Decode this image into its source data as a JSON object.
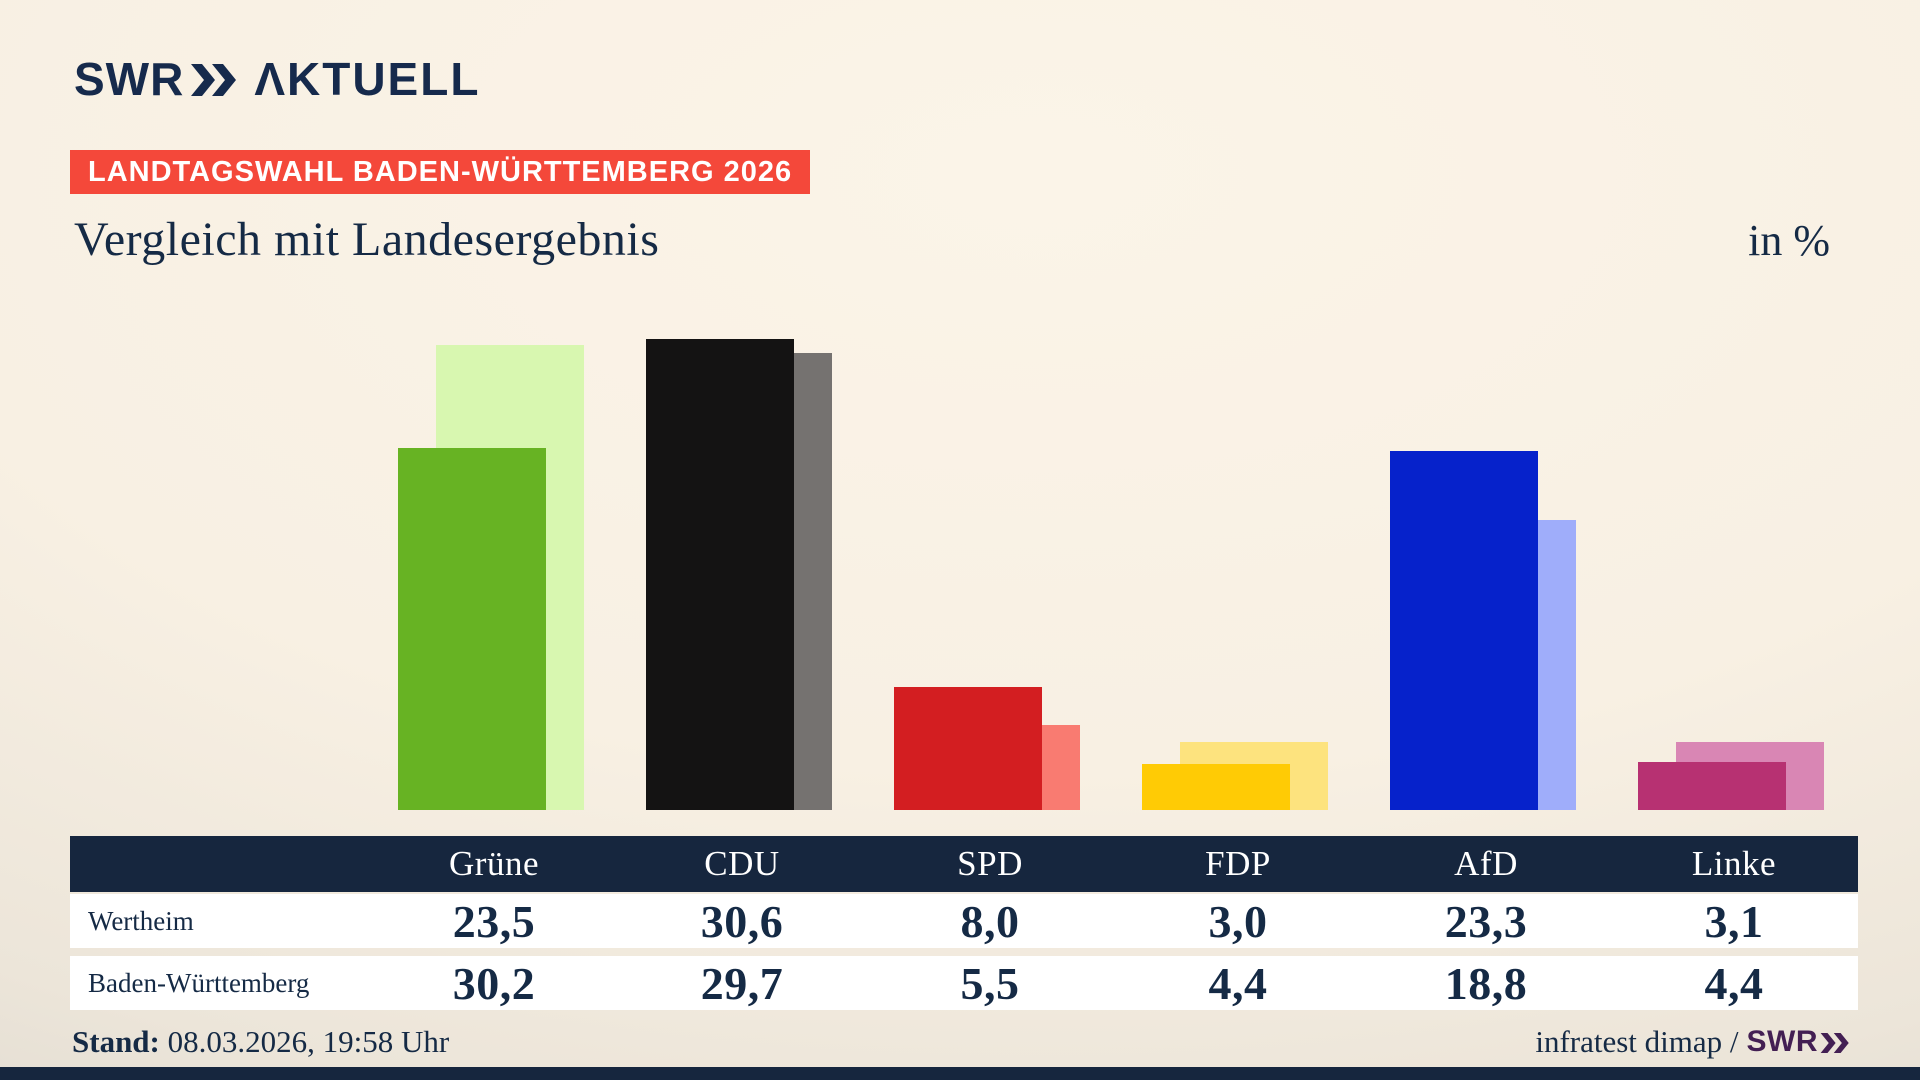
{
  "brand": {
    "swr": "SWR",
    "aktuell": "ΛKTUELL"
  },
  "badge": {
    "label": "LANDTAGSWAHL BADEN-WÜRTTEMBERG 2026",
    "bg": "#f4483a"
  },
  "title": "Vergleich mit Landesergebnis",
  "unit_label": "in %",
  "footer": {
    "stand_label": "Stand:",
    "stand_value": "08.03.2026, 19:58 Uhr",
    "source_text": "infratest dimap /",
    "source_brand": "SWR"
  },
  "colors": {
    "text_navy": "#152a45",
    "logo_navy": "#162a4c",
    "header_navy": "#16263e",
    "badge_red": "#f4483a",
    "footer_brand_purple": "#431f53",
    "bottom_bar_navy": "#16263e",
    "row_bg": "#ffffff"
  },
  "chart_data": {
    "type": "bar",
    "title": "Vergleich mit Landesergebnis",
    "unit": "in %",
    "categories": [
      "Grüne",
      "CDU",
      "SPD",
      "FDP",
      "AfD",
      "Linke"
    ],
    "series": [
      {
        "name": "Wertheim",
        "values": [
          23.5,
          30.6,
          8.0,
          3.0,
          23.3,
          3.1
        ],
        "values_display": [
          "23,5",
          "30,6",
          "8,0",
          "3,0",
          "23,3",
          "3,1"
        ]
      },
      {
        "name": "Baden-Württemberg",
        "values": [
          30.2,
          29.7,
          5.5,
          4.4,
          18.8,
          4.4
        ],
        "values_display": [
          "30,2",
          "29,7",
          "5,5",
          "4,4",
          "18,8",
          "4,4"
        ]
      }
    ],
    "bar_colors_front": [
      "#67b323",
      "#141313",
      "#d31e21",
      "#ffcb05",
      "#0622cb",
      "#b73172"
    ],
    "bar_colors_back": [
      "#d8f7b0",
      "#757270",
      "#f97b71",
      "#fde37e",
      "#9fadfa",
      "#d986b4"
    ],
    "ylim": [
      0,
      32
    ],
    "grid": false,
    "legend_position": "table-rows",
    "note": "front bar = Wertheim, offset lighter back bar = Baden-Württemberg"
  }
}
